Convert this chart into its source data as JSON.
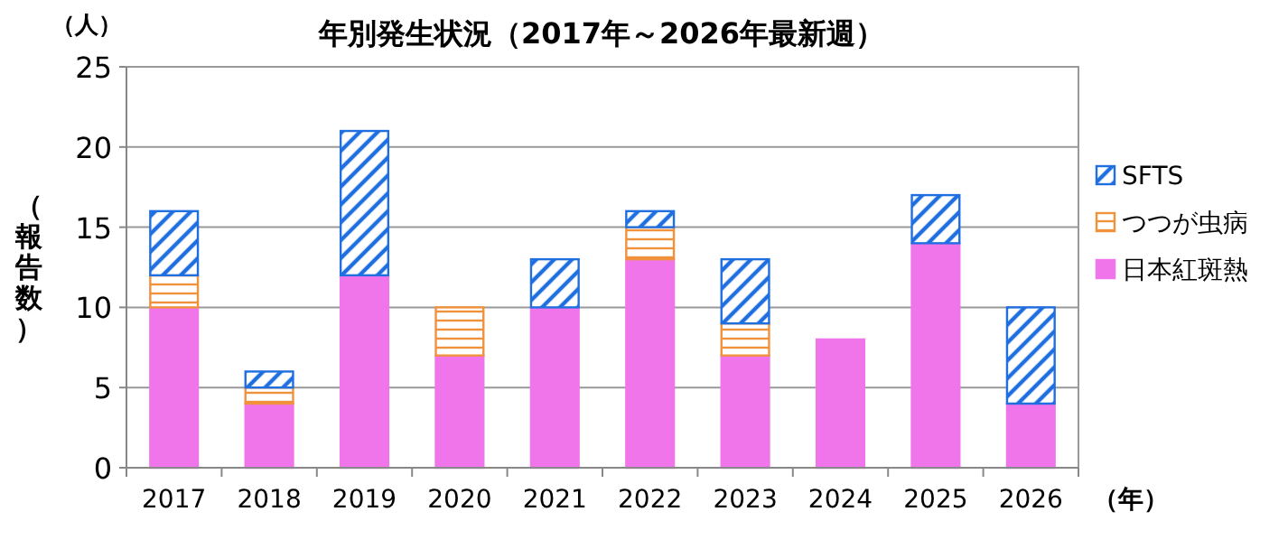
{
  "chart_data": {
    "type": "bar",
    "title": "年別発生状況（2017年～2026年最新週）",
    "xlabel": "（年）",
    "ylabel": "（報告数）",
    "annotations": [
      "（人）"
    ],
    "categories": [
      "2017",
      "2018",
      "2019",
      "2020",
      "2021",
      "2022",
      "2023",
      "2024",
      "2025",
      "2026"
    ],
    "stacked": true,
    "series": [
      {
        "name": "日本紅斑熱",
        "color": "#f075ea",
        "values": [
          10,
          4,
          12,
          7,
          10,
          13,
          7,
          8,
          14,
          4
        ]
      },
      {
        "name": "つつが虫病",
        "color": "#f0923c",
        "values": [
          2,
          1,
          0,
          3,
          0,
          2,
          2,
          0,
          0,
          0
        ]
      },
      {
        "name": "SFTS",
        "color": "#1f6fe0",
        "values": [
          4,
          1,
          9,
          0,
          3,
          1,
          4,
          0,
          3,
          6
        ]
      }
    ],
    "ylim": [
      0,
      25
    ],
    "yticks": [
      0,
      5,
      10,
      15,
      20,
      25
    ],
    "grid": "y",
    "legend": "right"
  }
}
